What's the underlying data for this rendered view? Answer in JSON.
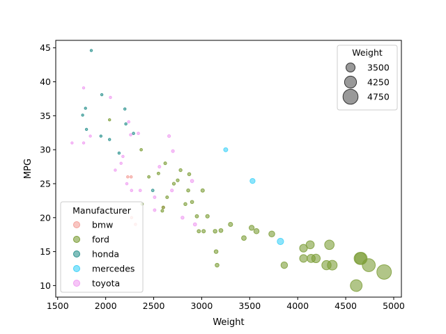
{
  "chart_data": {
    "type": "scatter",
    "title": "",
    "xlabel": "Weight",
    "ylabel": "MPG",
    "xlim": [
      1480,
      5080
    ],
    "ylim": [
      8.3,
      46.1
    ],
    "xticks": [
      "1500",
      "2000",
      "2500",
      "3000",
      "3500",
      "4000",
      "4500",
      "5000"
    ],
    "yticks": [
      "10",
      "15",
      "20",
      "25",
      "30",
      "35",
      "40",
      "45"
    ],
    "grid": false,
    "color_legend": {
      "title": "Manufacturer",
      "placement": "lower-left",
      "entries": [
        "bmw",
        "ford",
        "honda",
        "mercedes",
        "toyota"
      ]
    },
    "size_legend": {
      "title": "Weight",
      "placement": "upper-right",
      "entries": [
        "3500",
        "4250",
        "4750"
      ]
    },
    "colors": {
      "bmw": "#f4a09a",
      "ford": "#7d9e38",
      "honda": "#2e9490",
      "mercedes": "#40d2f8",
      "toyota": "#f09ef2"
    },
    "series": [
      {
        "name": "bmw",
        "points": [
          [
            2230,
            26
          ],
          [
            2265,
            26
          ],
          [
            2600,
            21.5
          ],
          [
            2270,
            20
          ],
          [
            2310,
            19
          ]
        ]
      },
      {
        "name": "ford",
        "points": [
          [
            2040,
            34.4
          ],
          [
            2370,
            30
          ],
          [
            2380,
            22
          ],
          [
            2450,
            26
          ],
          [
            2550,
            26.5
          ],
          [
            2590,
            21
          ],
          [
            2600,
            21.5
          ],
          [
            2620,
            28
          ],
          [
            2640,
            23
          ],
          [
            2710,
            25
          ],
          [
            2750,
            25.5
          ],
          [
            2780,
            27
          ],
          [
            2830,
            22
          ],
          [
            2860,
            24
          ],
          [
            2870,
            26.4
          ],
          [
            2900,
            22.3
          ],
          [
            2950,
            20.2
          ],
          [
            2970,
            18
          ],
          [
            3010,
            24
          ],
          [
            3020,
            18
          ],
          [
            3060,
            20.2
          ],
          [
            3140,
            18
          ],
          [
            3150,
            15
          ],
          [
            3160,
            13
          ],
          [
            3200,
            18.1
          ],
          [
            3300,
            19
          ],
          [
            3440,
            17
          ],
          [
            3520,
            18.5
          ],
          [
            3570,
            18
          ],
          [
            3730,
            17.6
          ],
          [
            3860,
            13
          ],
          [
            4060,
            14
          ],
          [
            4060,
            15.5
          ],
          [
            4130,
            16
          ],
          [
            4140,
            14
          ],
          [
            4190,
            14
          ],
          [
            4300,
            13
          ],
          [
            4330,
            16
          ],
          [
            4360,
            13
          ],
          [
            4610,
            10
          ],
          [
            4650,
            14
          ],
          [
            4660,
            14
          ],
          [
            4740,
            13
          ],
          [
            4900,
            12
          ]
        ]
      },
      {
        "name": "honda",
        "points": [
          [
            1850,
            44.6
          ],
          [
            1960,
            38.1
          ],
          [
            1790,
            36.1
          ],
          [
            2200,
            36
          ],
          [
            1760,
            35.1
          ],
          [
            1800,
            33
          ],
          [
            2210,
            33.8
          ],
          [
            2290,
            32.4
          ],
          [
            1950,
            32
          ],
          [
            2040,
            31.5
          ],
          [
            2140,
            29.5
          ],
          [
            2490,
            24
          ]
        ]
      },
      {
        "name": "mercedes",
        "points": [
          [
            3250,
            30
          ],
          [
            3530,
            25.4
          ],
          [
            3820,
            16.5
          ]
        ]
      },
      {
        "name": "toyota",
        "points": [
          [
            1770,
            39.1
          ],
          [
            2050,
            37.7
          ],
          [
            2240,
            34.1
          ],
          [
            2260,
            32.2
          ],
          [
            2340,
            32.4
          ],
          [
            2660,
            32
          ],
          [
            1650,
            31
          ],
          [
            1770,
            31
          ],
          [
            1840,
            32
          ],
          [
            2700,
            29.8
          ],
          [
            2180,
            29
          ],
          [
            2160,
            28
          ],
          [
            2560,
            27.5
          ],
          [
            2100,
            27
          ],
          [
            2220,
            25
          ],
          [
            2900,
            25.4
          ],
          [
            2360,
            24
          ],
          [
            2690,
            24
          ],
          [
            2270,
            24
          ],
          [
            2510,
            23
          ],
          [
            2510,
            21.1
          ],
          [
            2800,
            20
          ],
          [
            2930,
            19
          ]
        ]
      }
    ]
  }
}
